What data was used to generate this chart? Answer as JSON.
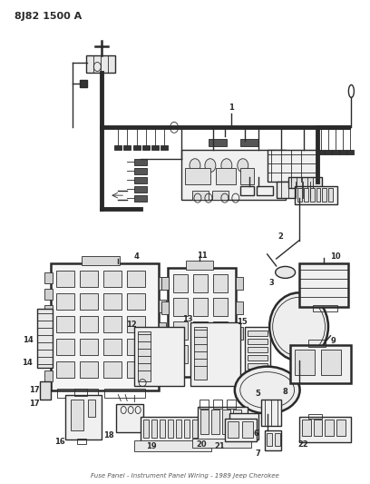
{
  "title": "8J82 1500 A",
  "bg_color": "#ffffff",
  "lc": "#2a2a2a",
  "figsize": [
    4.08,
    5.33
  ],
  "dpi": 100
}
